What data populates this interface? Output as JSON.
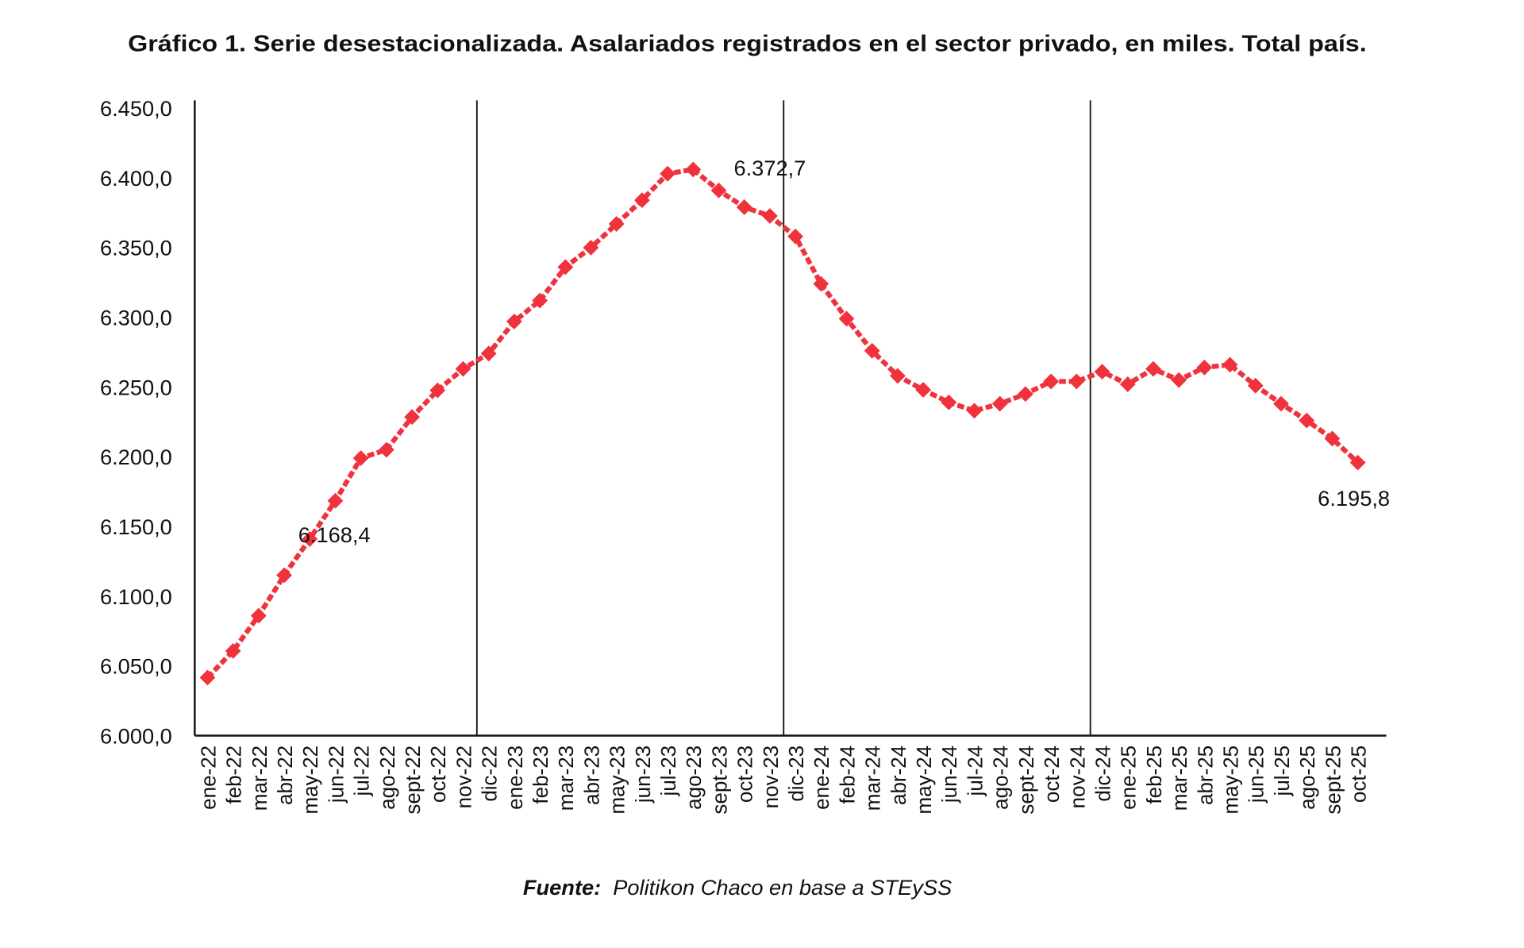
{
  "chart_data": {
    "type": "line",
    "title": "Gráfico 1. Serie desestacionalizada. Asalariados registrados en el sector privado, en miles. Total país.",
    "source_label": "Fuente:",
    "source_text": "Politikon Chaco en base a STEySS",
    "xlabel": "",
    "ylabel": "",
    "ylim": [
      6000,
      6450
    ],
    "y_ticks": [
      "6.000,0",
      "6.050,0",
      "6.100,0",
      "6.150,0",
      "6.200,0",
      "6.250,0",
      "6.300,0",
      "6.350,0",
      "6.400,0",
      "6.450,0"
    ],
    "grid": false,
    "separators_at": [
      "dic-22",
      "dic-23",
      "dic-24"
    ],
    "series_color": "#f0323c",
    "categories": [
      "ene-22",
      "feb-22",
      "mar-22",
      "abr-22",
      "may-22",
      "jun-22",
      "jul-22",
      "ago-22",
      "sept-22",
      "oct-22",
      "nov-22",
      "dic-22",
      "ene-23",
      "feb-23",
      "mar-23",
      "abr-23",
      "may-23",
      "jun-23",
      "jul-23",
      "ago-23",
      "sept-23",
      "oct-23",
      "nov-23",
      "dic-23",
      "ene-24",
      "feb-24",
      "mar-24",
      "abr-24",
      "may-24",
      "jun-24",
      "jul-24",
      "ago-24",
      "sept-24",
      "oct-24",
      "nov-24",
      "dic-24",
      "ene-25",
      "feb-25",
      "mar-25",
      "abr-25",
      "may-25",
      "jun-25",
      "jul-25",
      "ago-25",
      "sept-25",
      "oct-25"
    ],
    "series": [
      {
        "values": [
          6041.6,
          6060.7,
          6086,
          6115,
          6141,
          6168.4,
          6199,
          6205,
          6228.5,
          6247.6,
          6263,
          6274,
          6297,
          6312,
          6336,
          6350,
          6367,
          6384,
          6403,
          6406,
          6391,
          6379,
          6372.7,
          6358,
          6324,
          6299,
          6276,
          6258,
          6248,
          6239,
          6233,
          6238,
          6245,
          6254,
          6254,
          6261,
          6252,
          6263,
          6255,
          6264,
          6266,
          6251,
          6238,
          6226,
          6213,
          6195.8
        ]
      }
    ],
    "annotations": [
      {
        "category": "jun-22",
        "text": "6.168,4"
      },
      {
        "category": "nov-23",
        "text": "6.372,7"
      },
      {
        "category": "oct-25",
        "text": "6.195,8"
      }
    ]
  }
}
